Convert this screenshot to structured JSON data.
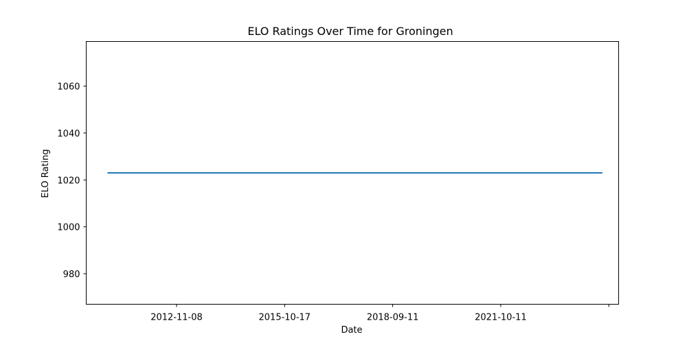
{
  "chart_data": {
    "type": "line",
    "title": "ELO Ratings Over Time for Groningen",
    "xlabel": "Date",
    "ylabel": "ELO Rating",
    "grid": false,
    "legend": "none",
    "x_ticks": [
      "2012-11-08",
      "2015-10-17",
      "2018-09-11",
      "2021-10-11",
      ""
    ],
    "y_ticks": [
      980,
      1000,
      1020,
      1040,
      1060
    ],
    "ylim": [
      967,
      1079
    ],
    "xlim": [
      "2010-12-16",
      "2025-01-28"
    ],
    "series": [
      {
        "color": "#1f77b4",
        "x": [
          "2011-07-10",
          "2024-08-23"
        ],
        "y": [
          1023,
          1023
        ]
      }
    ]
  }
}
